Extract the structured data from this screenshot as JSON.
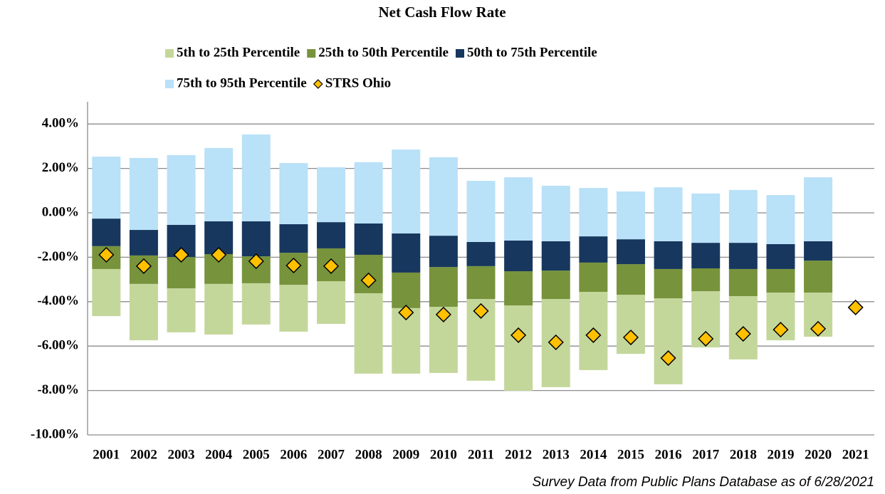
{
  "chart_data": {
    "type": "bar",
    "title": "Net Cash Flow Rate",
    "source": "Survey Data from Public Plans Database as of 6/28/2021",
    "categories": [
      "2001",
      "2002",
      "2003",
      "2004",
      "2005",
      "2006",
      "2007",
      "2008",
      "2009",
      "2010",
      "2011",
      "2012",
      "2013",
      "2014",
      "2015",
      "2016",
      "2017",
      "2018",
      "2019",
      "2020",
      "2021"
    ],
    "series": [
      {
        "name": "5th to 25th Percentile",
        "color": "#c4d79b",
        "low": [
          -4.65,
          -5.74,
          -5.38,
          -5.48,
          -5.03,
          -5.35,
          -5.0,
          -7.24,
          -7.24,
          -7.21,
          -7.56,
          -8.01,
          -7.85,
          -7.08,
          -6.35,
          -7.72,
          -6.06,
          -6.6,
          -5.74,
          -5.58,
          null
        ],
        "high": [
          -2.53,
          -3.2,
          -3.4,
          -3.2,
          -3.17,
          -3.24,
          -3.08,
          -3.62,
          -4.29,
          -4.23,
          -3.88,
          -4.17,
          -3.88,
          -3.56,
          -3.69,
          -3.85,
          -3.53,
          -3.75,
          -3.59,
          -3.59,
          null
        ]
      },
      {
        "name": "25th to 50th Percentile",
        "color": "#77933c",
        "low": [
          -2.53,
          -3.2,
          -3.4,
          -3.2,
          -3.17,
          -3.24,
          -3.08,
          -3.62,
          -4.29,
          -4.23,
          -3.88,
          -4.17,
          -3.88,
          -3.56,
          -3.69,
          -3.85,
          -3.53,
          -3.75,
          -3.59,
          -3.59,
          null
        ],
        "high": [
          -1.5,
          -1.92,
          -1.99,
          -1.86,
          -1.96,
          -1.8,
          -1.6,
          -1.89,
          -2.69,
          -2.44,
          -2.4,
          -2.63,
          -2.6,
          -2.24,
          -2.31,
          -2.53,
          -2.5,
          -2.53,
          -2.53,
          -2.15,
          null
        ]
      },
      {
        "name": "50th to 75th Percentile",
        "color": "#17375e",
        "low": [
          -1.5,
          -1.92,
          -1.99,
          -1.86,
          -1.96,
          -1.8,
          -1.6,
          -1.89,
          -2.69,
          -2.44,
          -2.4,
          -2.63,
          -2.6,
          -2.24,
          -2.31,
          -2.53,
          -2.5,
          -2.53,
          -2.53,
          -2.15,
          null
        ],
        "high": [
          -0.26,
          -0.77,
          -0.54,
          -0.38,
          -0.38,
          -0.51,
          -0.42,
          -0.48,
          -0.93,
          -1.03,
          -1.31,
          -1.25,
          -1.28,
          -1.06,
          -1.19,
          -1.28,
          -1.35,
          -1.35,
          -1.41,
          -1.28,
          null
        ]
      },
      {
        "name": "75th to 95th Percentile",
        "color": "#b9e1f8",
        "low": [
          -0.26,
          -0.77,
          -0.54,
          -0.38,
          -0.38,
          -0.51,
          -0.42,
          -0.48,
          -0.93,
          -1.03,
          -1.31,
          -1.25,
          -1.28,
          -1.06,
          -1.19,
          -1.28,
          -1.35,
          -1.35,
          -1.41,
          -1.28,
          null
        ],
        "high": [
          2.53,
          2.47,
          2.6,
          2.92,
          3.53,
          2.24,
          2.05,
          2.28,
          2.85,
          2.5,
          1.44,
          1.6,
          1.22,
          1.12,
          0.96,
          1.15,
          0.87,
          1.03,
          0.8,
          1.6,
          null
        ]
      },
      {
        "name": "STRS Ohio",
        "color": "#ffc000",
        "marker": "diamond",
        "values": [
          -1.89,
          -2.4,
          -1.89,
          -1.89,
          -2.18,
          -2.37,
          -2.4,
          -3.04,
          -4.49,
          -4.58,
          -4.42,
          -5.51,
          -5.83,
          -5.51,
          -5.61,
          -6.54,
          -5.67,
          -5.45,
          -5.26,
          -5.22,
          -4.26
        ]
      }
    ],
    "ylim": [
      -10,
      5
    ],
    "yticks": [
      {
        "value": -10,
        "label": "-10.00%"
      },
      {
        "value": -8,
        "label": "-8.00%"
      },
      {
        "value": -6,
        "label": "-6.00%"
      },
      {
        "value": -4,
        "label": "-4.00%"
      },
      {
        "value": -2,
        "label": "-2.00%"
      },
      {
        "value": 0,
        "label": "0.00%"
      },
      {
        "value": 2,
        "label": "2.00%"
      },
      {
        "value": 4,
        "label": "4.00%"
      }
    ],
    "grid": true,
    "legend": "top"
  }
}
